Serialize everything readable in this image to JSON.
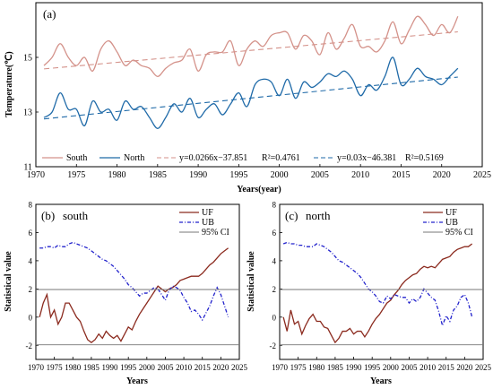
{
  "chart_data": [
    {
      "type": "line",
      "panel_label": "(a)",
      "xlabel": "Years(year)",
      "ylabel": "Temperature(℃)",
      "xlim": [
        1970,
        2025
      ],
      "ylim": [
        11,
        17
      ],
      "xticks": [
        1970,
        1975,
        1980,
        1985,
        1990,
        1995,
        2000,
        2005,
        2010,
        2015,
        2020,
        2025
      ],
      "yticks": [
        11,
        13,
        15
      ],
      "legend_position": "bottom",
      "x": [
        1971,
        1972,
        1973,
        1974,
        1975,
        1976,
        1977,
        1978,
        1979,
        1980,
        1981,
        1982,
        1983,
        1984,
        1985,
        1986,
        1987,
        1988,
        1989,
        1990,
        1991,
        1992,
        1993,
        1994,
        1995,
        1996,
        1997,
        1998,
        1999,
        2000,
        2001,
        2002,
        2003,
        2004,
        2005,
        2006,
        2007,
        2008,
        2009,
        2010,
        2011,
        2012,
        2013,
        2014,
        2015,
        2016,
        2017,
        2018,
        2019,
        2020,
        2021,
        2022
      ],
      "series": [
        {
          "name": "South",
          "color": "#d4928a",
          "values": [
            14.7,
            15.0,
            15.5,
            15.0,
            14.7,
            15.0,
            14.5,
            15.3,
            15.6,
            15.2,
            14.7,
            14.9,
            14.7,
            14.6,
            14.3,
            14.6,
            14.8,
            14.9,
            15.3,
            14.5,
            15.1,
            15.2,
            15.2,
            15.6,
            14.7,
            15.3,
            15.6,
            15.4,
            15.8,
            15.9,
            15.9,
            15.3,
            15.8,
            15.6,
            15.1,
            15.9,
            15.3,
            15.7,
            16.2,
            15.4,
            15.4,
            15.2,
            15.6,
            16.3,
            15.5,
            16.0,
            16.5,
            16.2,
            15.8,
            16.2,
            15.9,
            16.5
          ]
        },
        {
          "name": "North",
          "color": "#1f6aa8",
          "values": [
            12.8,
            13.0,
            13.7,
            13.1,
            13.1,
            12.5,
            13.4,
            13.0,
            13.1,
            12.7,
            13.4,
            13.1,
            13.2,
            12.8,
            12.4,
            12.8,
            13.3,
            13.0,
            13.5,
            12.8,
            13.1,
            13.3,
            12.9,
            13.3,
            13.7,
            13.2,
            14.0,
            14.2,
            14.1,
            13.6,
            14.2,
            13.5,
            14.1,
            13.9,
            14.1,
            14.4,
            14.3,
            14.5,
            14.2,
            13.6,
            14.0,
            13.8,
            14.3,
            15.0,
            14.0,
            14.2,
            14.6,
            14.3,
            14.2,
            14.0,
            14.3,
            14.6
          ]
        },
        {
          "name": "y=0.0266x−37.851",
          "r2_label": "R²=0.4761",
          "style": "dashed",
          "color": "#d4928a",
          "slope": 0.0266,
          "intercept": -37.851
        },
        {
          "name": "y=0.03x−46.381",
          "r2_label": "R²=0.5169",
          "style": "dashed",
          "color": "#1f6aa8",
          "slope": 0.03,
          "intercept": -46.381
        }
      ]
    },
    {
      "type": "line",
      "panel_label": "(b)",
      "panel_title": "south",
      "xlabel": "Years",
      "ylabel": "Statistical value",
      "xlim": [
        1970,
        2025
      ],
      "ylim": [
        -3,
        8
      ],
      "xticks": [
        1970,
        1975,
        1980,
        1985,
        1990,
        1995,
        2000,
        2005,
        2010,
        2015,
        2020,
        2025
      ],
      "yticks": [
        -2,
        0,
        2,
        4,
        6,
        8
      ],
      "legend_position": "top-right",
      "x": [
        1971,
        1972,
        1973,
        1974,
        1975,
        1976,
        1977,
        1978,
        1979,
        1980,
        1981,
        1982,
        1983,
        1984,
        1985,
        1986,
        1987,
        1988,
        1989,
        1990,
        1991,
        1992,
        1993,
        1994,
        1995,
        1996,
        1997,
        1998,
        1999,
        2000,
        2001,
        2002,
        2003,
        2004,
        2005,
        2006,
        2007,
        2008,
        2009,
        2010,
        2011,
        2012,
        2013,
        2014,
        2015,
        2016,
        2017,
        2018,
        2019,
        2020,
        2021,
        2022
      ],
      "series": [
        {
          "name": "UF",
          "color": "#8b2a1e",
          "values": [
            0.0,
            1.0,
            1.6,
            0.0,
            0.5,
            -0.5,
            0.0,
            1.0,
            1.0,
            0.5,
            0.0,
            -0.3,
            -1.0,
            -1.6,
            -1.8,
            -1.6,
            -1.2,
            -1.5,
            -1.0,
            -1.3,
            -1.5,
            -1.3,
            -1.7,
            -1.2,
            -0.7,
            -0.9,
            -0.3,
            0.2,
            0.6,
            1.0,
            1.4,
            1.8,
            2.2,
            2.0,
            1.8,
            2.0,
            2.1,
            2.3,
            2.6,
            2.7,
            2.8,
            2.9,
            2.9,
            2.9,
            3.1,
            3.4,
            3.7,
            3.9,
            4.2,
            4.5,
            4.7,
            4.9
          ]
        },
        {
          "name": "UB",
          "color": "#2222cc",
          "style": "dash-dot",
          "values": [
            4.9,
            4.9,
            5.0,
            5.0,
            4.9,
            5.1,
            5.0,
            5.0,
            5.2,
            5.3,
            5.2,
            5.1,
            5.0,
            4.9,
            4.7,
            4.5,
            4.3,
            4.1,
            4.0,
            3.8,
            3.6,
            3.3,
            3.0,
            2.7,
            2.3,
            2.1,
            1.8,
            1.5,
            1.7,
            1.7,
            1.9,
            2.1,
            2.0,
            1.6,
            1.2,
            1.9,
            2.2,
            2.1,
            1.9,
            1.4,
            1.0,
            0.4,
            0.5,
            0.2,
            -0.2,
            0.3,
            0.8,
            1.5,
            2.1,
            1.6,
            0.8,
            0.0
          ]
        },
        {
          "name": "95% CI",
          "color": "#777777",
          "hlines": [
            1.96,
            -1.96
          ]
        }
      ]
    },
    {
      "type": "line",
      "panel_label": "(c)",
      "panel_title": "north",
      "xlabel": "Years",
      "ylabel": "Statistical value",
      "xlim": [
        1970,
        2025
      ],
      "ylim": [
        -3,
        8
      ],
      "xticks": [
        1970,
        1975,
        1980,
        1985,
        1990,
        1995,
        2000,
        2005,
        2010,
        2015,
        2020,
        2025
      ],
      "yticks": [
        -2,
        0,
        2,
        4,
        6,
        8
      ],
      "legend_position": "top-right",
      "x": [
        1971,
        1972,
        1973,
        1974,
        1975,
        1976,
        1977,
        1978,
        1979,
        1980,
        1981,
        1982,
        1983,
        1984,
        1985,
        1986,
        1987,
        1988,
        1989,
        1990,
        1991,
        1992,
        1993,
        1994,
        1995,
        1996,
        1997,
        1998,
        1999,
        2000,
        2001,
        2002,
        2003,
        2004,
        2005,
        2006,
        2007,
        2008,
        2009,
        2010,
        2011,
        2012,
        2013,
        2014,
        2015,
        2016,
        2017,
        2018,
        2019,
        2020,
        2021,
        2022
      ],
      "series": [
        {
          "name": "UF",
          "color": "#8b2a1e",
          "values": [
            0.0,
            -1.0,
            0.5,
            -0.5,
            -0.3,
            -1.2,
            -0.6,
            -0.1,
            0.2,
            -0.3,
            -0.3,
            -0.7,
            -0.8,
            -1.3,
            -1.8,
            -1.5,
            -1.0,
            -1.0,
            -0.8,
            -1.2,
            -1.0,
            -1.0,
            -1.4,
            -1.0,
            -0.5,
            -0.1,
            0.2,
            0.6,
            1.0,
            1.2,
            1.6,
            1.9,
            2.3,
            2.6,
            2.8,
            3.0,
            3.1,
            3.4,
            3.6,
            3.5,
            3.6,
            3.5,
            3.8,
            4.1,
            4.2,
            4.3,
            4.6,
            4.8,
            4.9,
            5.0,
            5.0,
            5.2
          ]
        },
        {
          "name": "UB",
          "color": "#2222cc",
          "style": "dash-dot",
          "values": [
            5.2,
            5.3,
            5.2,
            5.2,
            5.1,
            5.1,
            5.0,
            5.0,
            5.0,
            5.2,
            5.1,
            5.0,
            4.8,
            4.6,
            4.3,
            4.0,
            3.9,
            3.7,
            3.5,
            3.3,
            3.1,
            2.8,
            2.4,
            2.0,
            1.8,
            1.5,
            1.1,
            1.0,
            1.5,
            1.3,
            1.6,
            1.5,
            1.4,
            1.4,
            1.0,
            1.3,
            1.1,
            1.4,
            2.0,
            1.7,
            1.4,
            1.2,
            0.4,
            -0.6,
            0.1,
            -0.3,
            0.5,
            0.8,
            1.4,
            1.6,
            1.0,
            0.0
          ]
        },
        {
          "name": "95% CI",
          "color": "#777777",
          "hlines": [
            1.96,
            -1.96
          ]
        }
      ]
    }
  ]
}
